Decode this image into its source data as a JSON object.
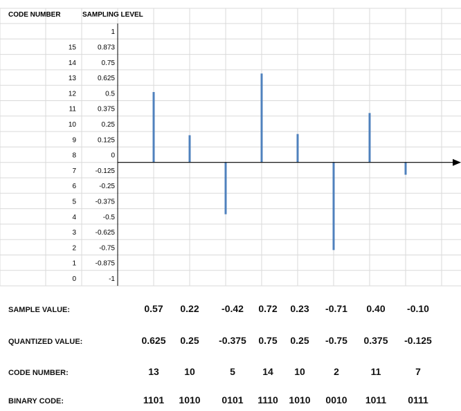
{
  "headers": {
    "code_number": "CODE NUMBER",
    "sampling_level": "SAMPLING LEVEL"
  },
  "chart_data": {
    "type": "bar",
    "levels": [
      {
        "code": "",
        "value": "1"
      },
      {
        "code": "15",
        "value": "0.873"
      },
      {
        "code": "14",
        "value": "0.75"
      },
      {
        "code": "13",
        "value": "0.625"
      },
      {
        "code": "12",
        "value": "0.5"
      },
      {
        "code": "11",
        "value": "0.375"
      },
      {
        "code": "10",
        "value": "0.25"
      },
      {
        "code": "9",
        "value": "0.125"
      },
      {
        "code": "8",
        "value": "0"
      },
      {
        "code": "7",
        "value": "-0.125"
      },
      {
        "code": "6",
        "value": "-0.25"
      },
      {
        "code": "5",
        "value": "-0.375"
      },
      {
        "code": "4",
        "value": "-0.5"
      },
      {
        "code": "3",
        "value": "-0.625"
      },
      {
        "code": "2",
        "value": "-0.75"
      },
      {
        "code": "1",
        "value": "-0.875"
      },
      {
        "code": "0",
        "value": "-1"
      }
    ],
    "sample_values": [
      0.57,
      0.22,
      -0.42,
      0.72,
      0.23,
      -0.71,
      0.4,
      -0.1
    ],
    "ylim": [
      -1,
      1
    ],
    "bar_color": "#4f81bd",
    "grid": true
  },
  "table": {
    "rows": [
      {
        "label": "SAMPLE VALUE:",
        "values": [
          "0.57",
          "0.22",
          "-0.42",
          "0.72",
          "0.23",
          "-0.71",
          "0.40",
          "-0.10"
        ]
      },
      {
        "label": "QUANTIZED VALUE:",
        "values": [
          "0.625",
          "0.25",
          "-0.375",
          "0.75",
          "0.25",
          "-0.75",
          "0.375",
          "-0.125"
        ]
      },
      {
        "label": "CODE NUMBER:",
        "values": [
          "13",
          "10",
          "5",
          "14",
          "10",
          "2",
          "11",
          "7"
        ]
      },
      {
        "label": "BINARY CODE:",
        "values": [
          "1101",
          "1010",
          "0101",
          "1110",
          "1010",
          "0010",
          "1011",
          "0111"
        ]
      }
    ]
  }
}
